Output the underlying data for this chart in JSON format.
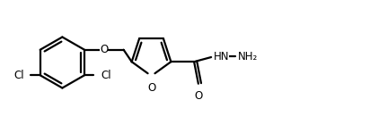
{
  "bg_color": "#ffffff",
  "line_color": "#000000",
  "line_width": 1.6,
  "font_size": 8.5,
  "figsize": [
    4.12,
    1.4
  ],
  "dpi": 100,
  "atoms": {
    "HN_label": "HN",
    "NH2_label": "NH₂",
    "O_carbonyl": "O",
    "O_ring": "O",
    "O_ether": "O",
    "Cl1_label": "Cl",
    "Cl2_label": "Cl"
  },
  "xlim": [
    0.0,
    10.0
  ],
  "ylim": [
    0.0,
    3.5
  ]
}
